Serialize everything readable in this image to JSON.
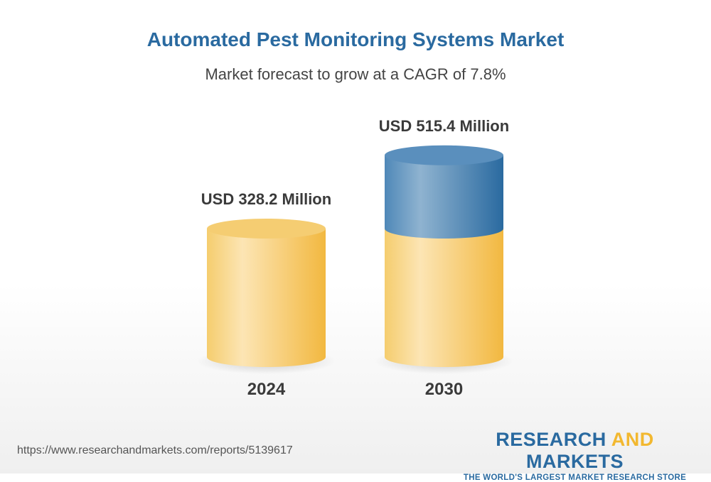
{
  "title": "Automated Pest Monitoring Systems Market",
  "subtitle": "Market forecast to grow at a CAGR of 7.8%",
  "chart_data": {
    "type": "bar",
    "style": "3d-cylinder",
    "categories": [
      "2024",
      "2030"
    ],
    "values": [
      328.2,
      515.4
    ],
    "value_labels": [
      "USD 328.2 Million",
      "USD 515.4 Million"
    ],
    "unit": "USD Million",
    "cagr": "7.8%",
    "colors": {
      "base": "#f2b840",
      "growth": "#2a6aa0"
    }
  },
  "footer": {
    "url": "https://www.researchandmarkets.com/reports/5139617",
    "logo_word1": "RESEARCH ",
    "logo_word2": "AND",
    "logo_word3": " MARKETS",
    "logo_tagline": "THE WORLD'S LARGEST MARKET RESEARCH STORE"
  }
}
